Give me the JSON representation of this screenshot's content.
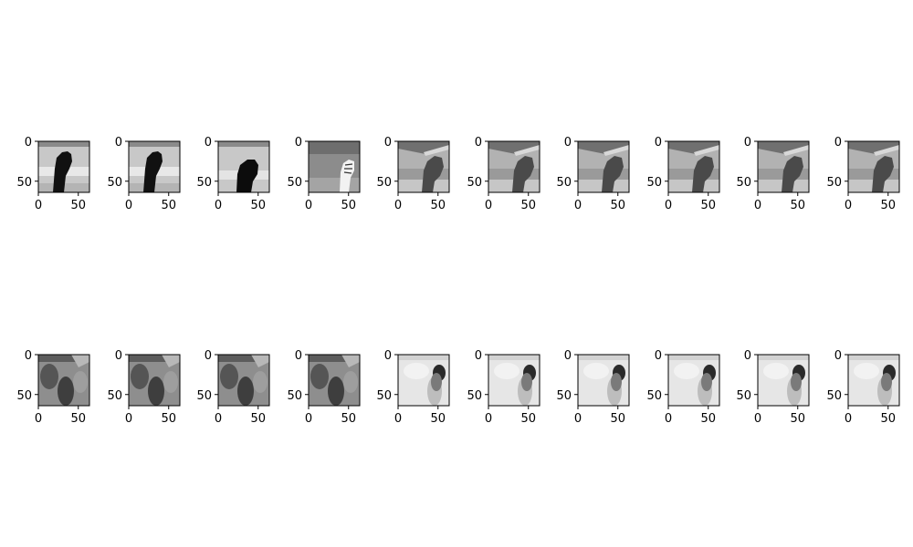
{
  "chart_data": {
    "type": "image-grid",
    "grid": {
      "rows": 2,
      "cols": 10
    },
    "axes": {
      "x_ticks": [
        "0",
        "50"
      ],
      "y_ticks": [
        "0",
        "50"
      ],
      "xlim": [
        0,
        64
      ],
      "ylim": [
        64,
        0
      ]
    },
    "rows": [
      {
        "panels": [
          {
            "image": "hand-fist-dark-on-light-bg"
          },
          {
            "image": "hand-fist-dark-on-light-bg"
          },
          {
            "image": "hand-fist-dark-lower-on-light-bg"
          },
          {
            "image": "hand-fist-light-on-gray-bg"
          },
          {
            "image": "hand-fist-gray-on-banded-bg"
          },
          {
            "image": "hand-fist-gray-on-banded-bg"
          },
          {
            "image": "hand-fist-gray-on-banded-bg"
          },
          {
            "image": "hand-fist-gray-on-banded-bg"
          },
          {
            "image": "hand-fist-gray-on-banded-bg"
          },
          {
            "image": "hand-fist-gray-on-banded-bg"
          }
        ]
      },
      {
        "panels": [
          {
            "image": "blurred-reconstruction-dark"
          },
          {
            "image": "blurred-reconstruction-dark"
          },
          {
            "image": "blurred-reconstruction-dark"
          },
          {
            "image": "blurred-reconstruction-dark"
          },
          {
            "image": "blurred-reconstruction-light"
          },
          {
            "image": "blurred-reconstruction-light"
          },
          {
            "image": "blurred-reconstruction-light"
          },
          {
            "image": "blurred-reconstruction-light"
          },
          {
            "image": "blurred-reconstruction-light"
          },
          {
            "image": "blurred-reconstruction-light"
          }
        ]
      }
    ]
  }
}
